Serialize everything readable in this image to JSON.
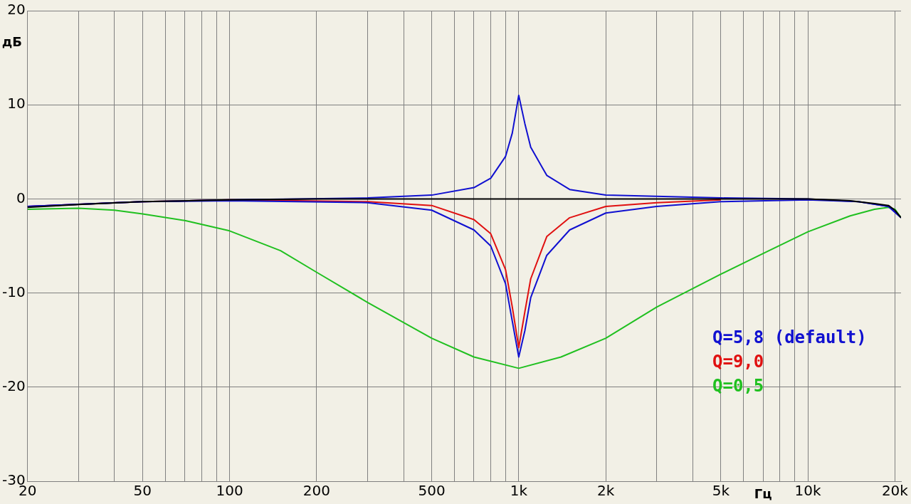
{
  "chart_data": {
    "type": "line",
    "xlabel": "Гц",
    "ylabel": "дБ",
    "log": "x",
    "grid": true,
    "legend": "bottom right",
    "marker": "none",
    "line_style": "solid",
    "xlim": [
      20,
      21000
    ],
    "ylim": [
      -30,
      20
    ],
    "xticks": [
      20,
      {
        "value": 30,
        "label": null
      },
      {
        "value": 40,
        "label": null
      },
      50,
      {
        "value": 60,
        "label": null
      },
      {
        "value": 70,
        "label": null
      },
      {
        "value": 80,
        "label": null
      },
      {
        "value": 90,
        "label": null
      },
      100,
      200,
      {
        "value": 300,
        "label": null
      },
      {
        "value": 400,
        "label": null
      },
      500,
      {
        "value": 600,
        "label": null
      },
      {
        "value": 700,
        "label": null
      },
      {
        "value": 800,
        "label": null
      },
      {
        "value": 900,
        "label": null
      },
      {
        "value": 1000,
        "label": "1k"
      },
      {
        "value": 2000,
        "label": "2k"
      },
      {
        "value": 3000,
        "label": null
      },
      {
        "value": 4000,
        "label": null
      },
      {
        "value": 5000,
        "label": "5k"
      },
      {
        "value": 6000,
        "label": null
      },
      {
        "value": 7000,
        "label": null
      },
      {
        "value": 8000,
        "label": null
      },
      {
        "value": 9000,
        "label": null
      },
      {
        "value": 10000,
        "label": "10k"
      },
      {
        "value": 20000,
        "label": "20k"
      }
    ],
    "yticks": [
      -30,
      -20,
      -10,
      0,
      10,
      20
    ],
    "series": [
      {
        "color": "#000000",
        "x": [
          20,
          30,
          50,
          100,
          200,
          500,
          1000,
          2000,
          5000,
          10000,
          14000,
          17000,
          19000,
          20000,
          21000
        ],
        "values": [
          -0.9,
          -0.6,
          -0.3,
          -0.1,
          0,
          0,
          0,
          0,
          0,
          0,
          -0.2,
          -0.5,
          -0.7,
          -1.2,
          -2
        ]
      },
      {
        "color": "#1010d0",
        "x": [
          20,
          50,
          100,
          300,
          500,
          700,
          800,
          900,
          950,
          1000,
          1050,
          1100,
          1250,
          1500,
          2000,
          5000,
          10000,
          15000,
          19000,
          21000
        ],
        "values": [
          -0.8,
          -0.3,
          -0.1,
          0.1,
          0.4,
          1.2,
          2.2,
          4.5,
          7,
          11,
          8,
          5.5,
          2.5,
          1,
          0.4,
          0.1,
          0,
          -0.3,
          -0.8,
          -2
        ]
      },
      {
        "name": "Q=5,8 (default)",
        "color": "#1010d0",
        "x": [
          20,
          50,
          100,
          300,
          500,
          700,
          800,
          900,
          950,
          1000,
          1050,
          1100,
          1250,
          1500,
          2000,
          3000,
          5000,
          10000,
          15000,
          19000,
          21000
        ],
        "values": [
          -0.8,
          -0.3,
          -0.2,
          -0.4,
          -1.2,
          -3.3,
          -5,
          -9,
          -13,
          -16.8,
          -14,
          -10.5,
          -6,
          -3.3,
          -1.5,
          -0.8,
          -0.3,
          -0.1,
          -0.3,
          -0.8,
          -2
        ]
      },
      {
        "name": "Q=9,0",
        "color": "#e01010",
        "x": [
          20,
          50,
          100,
          300,
          500,
          700,
          800,
          900,
          950,
          1000,
          1050,
          1100,
          1250,
          1500,
          2000,
          3000,
          5000
        ],
        "values": [
          -0.8,
          -0.3,
          -0.1,
          -0.3,
          -0.7,
          -2.2,
          -3.7,
          -7.5,
          -11.5,
          -15.8,
          -12,
          -8.5,
          -4,
          -2,
          -0.8,
          -0.4,
          -0.1
        ]
      },
      {
        "name": "Q=0,5",
        "color": "#20c020",
        "x": [
          20,
          30,
          40,
          50,
          70,
          100,
          150,
          200,
          300,
          500,
          700,
          1000,
          1400,
          2000,
          3000,
          5000,
          7000,
          10000,
          14000,
          17000,
          19000,
          20000,
          21000
        ],
        "values": [
          -1.1,
          -1,
          -1.2,
          -1.6,
          -2.3,
          -3.4,
          -5.5,
          -7.8,
          -11,
          -14.8,
          -16.8,
          -18,
          -16.8,
          -14.8,
          -11.5,
          -8,
          -5.8,
          -3.5,
          -1.8,
          -1.1,
          -0.9,
          -1.1,
          -2
        ]
      }
    ]
  }
}
